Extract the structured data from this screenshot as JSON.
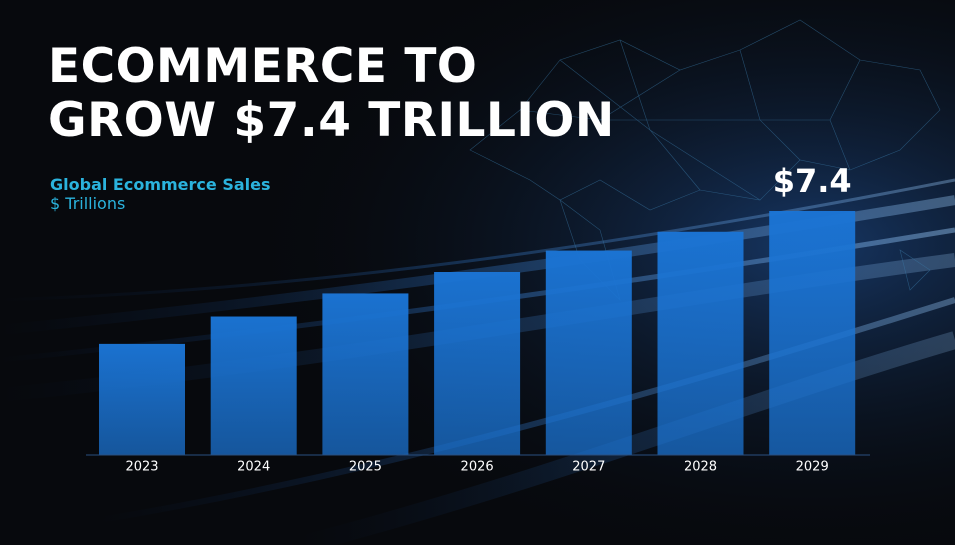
{
  "chart_data": {
    "type": "bar",
    "title": "ECOMMERCE TO GROW $7.4 TRILLION",
    "subtitle": "Global Ecommerce Sales",
    "y_label": "$ Trillions",
    "categories": [
      "2023",
      "2024",
      "2025",
      "2026",
      "2027",
      "2028",
      "2029"
    ],
    "values": [
      3.37,
      4.2,
      4.9,
      5.55,
      6.2,
      6.77,
      7.4
    ],
    "value_labels": [
      null,
      null,
      null,
      null,
      null,
      null,
      "$7.4"
    ],
    "color": "#1b74d4"
  }
}
